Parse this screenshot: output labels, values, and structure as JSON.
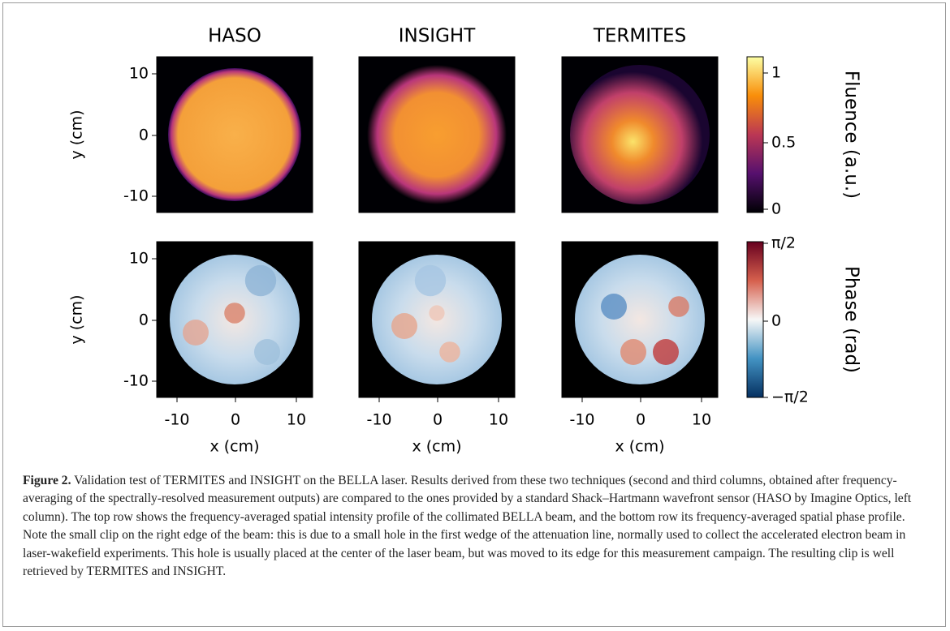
{
  "figure": {
    "columns": [
      "HASO",
      "INSIGHT",
      "TERMITES"
    ],
    "y_label": "y (cm)",
    "x_label": "x (cm)",
    "y_ticks": [
      "10",
      "0",
      "-10"
    ],
    "x_ticks": [
      "-10",
      "0",
      "10"
    ],
    "colorbars": [
      {
        "label": "Fluence (a.u.)",
        "ticks": [
          "1",
          "0.5",
          "0"
        ]
      },
      {
        "label": "Phase (rad)",
        "ticks": [
          "π/2",
          "0",
          "−π/2"
        ]
      }
    ]
  },
  "caption": {
    "label": "Figure 2.",
    "text": "Validation test of TERMITES and INSIGHT on the BELLA laser. Results derived from these two techniques (second and third columns, obtained after frequency-averaging of the spectrally-resolved measurement outputs) are compared to the ones provided by a standard Shack–Hartmann wavefront sensor (HASO by Imagine Optics, left column). The top row shows the frequency-averaged spatial intensity profile of the collimated BELLA beam, and the bottom row its frequency-averaged spatial phase profile. Note the small clip on the right edge of the beam: this is due to a small hole in the first wedge of the attenuation line, normally used to collect the accelerated electron beam in laser-wakefield experiments. This hole is usually placed at the center of the laser beam, but was moved to its edge for this measurement campaign. The resulting clip is well retrieved by TERMITES and INSIGHT."
  }
}
